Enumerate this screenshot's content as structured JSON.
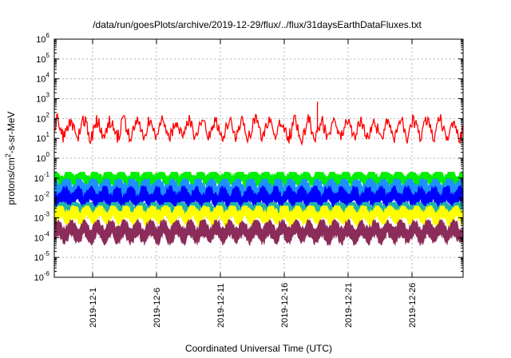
{
  "chart_data": {
    "type": "line",
    "title": "/data/run/goesPlots/archive/2019-12-29/flux/../flux/31daysEarthDataFluxes.txt",
    "xlabel": "Coordinated Universal Time (UTC)",
    "ylabel": "protons/cm2-s-sr-MeV",
    "ylabel_parts": {
      "before": "protons/cm",
      "sup": "2",
      "after": "-s-sr-MeV"
    },
    "y_scale": "log",
    "ylim": [
      1e-06,
      1000000.0
    ],
    "y_ticks": [
      {
        "base": "10",
        "exp": "6"
      },
      {
        "base": "10",
        "exp": "5"
      },
      {
        "base": "10",
        "exp": "4"
      },
      {
        "base": "10",
        "exp": "3"
      },
      {
        "base": "10",
        "exp": "2"
      },
      {
        "base": "10",
        "exp": "1"
      },
      {
        "base": "10",
        "exp": "0"
      },
      {
        "base": "10",
        "exp": "-1"
      },
      {
        "base": "10",
        "exp": "-2"
      },
      {
        "base": "10",
        "exp": "-3"
      },
      {
        "base": "10",
        "exp": "-4"
      },
      {
        "base": "10",
        "exp": "-5"
      },
      {
        "base": "10",
        "exp": "-6"
      }
    ],
    "xlim": [
      "2019-11-28",
      "2019-12-30"
    ],
    "x_ticks": [
      "2019-12-1",
      "2019-12-6",
      "2019-12-11",
      "2019-12-16",
      "2019-12-21",
      "2019-12-26"
    ],
    "grid": true,
    "series": [
      {
        "color": "#ff0000",
        "typical": 30,
        "min": 3,
        "max": 700
      },
      {
        "color": "#00ee00",
        "typical": 0.1,
        "min": 0.02,
        "max": 0.2
      },
      {
        "color": "#1e90ff",
        "typical": 0.03,
        "min": 0.005,
        "max": 0.09
      },
      {
        "color": "#0000ff",
        "typical": 0.01,
        "min": 0.002,
        "max": 0.04
      },
      {
        "color": "#20b2aa",
        "typical": 0.003,
        "min": 0.0008,
        "max": 0.006
      },
      {
        "color": "#ffff00",
        "typical": 0.0015,
        "min": 0.0003,
        "max": 0.004
      },
      {
        "color": "#8b2c5a",
        "typical": 0.0002,
        "min": 4e-05,
        "max": 0.0008
      }
    ]
  }
}
